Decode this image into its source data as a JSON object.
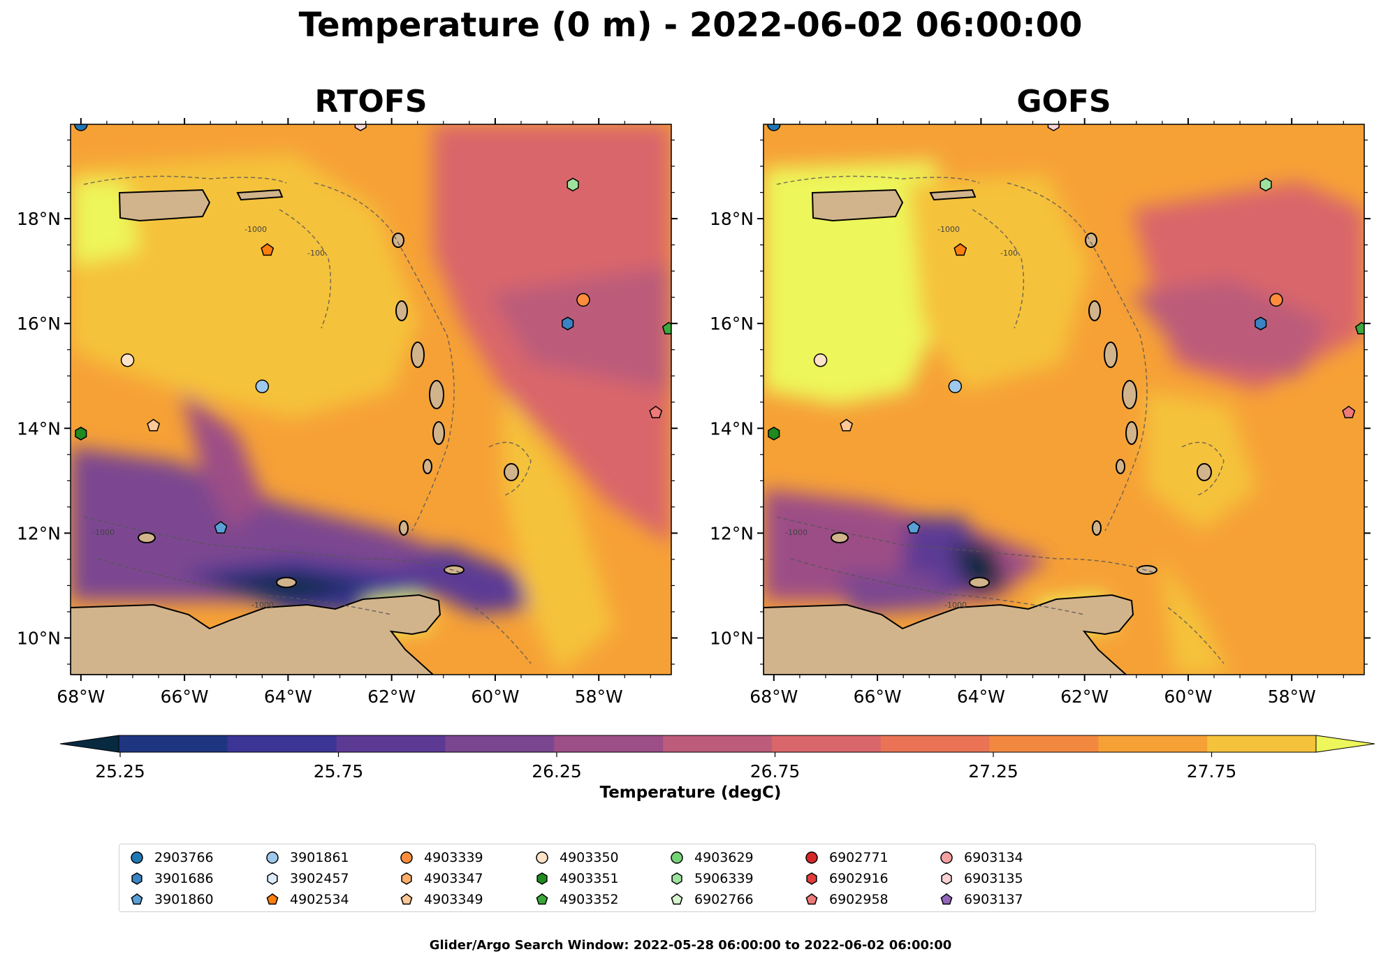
{
  "main_title": "Temperature (0 m) - 2022-06-02 06:00:00",
  "panels": [
    {
      "title": "RTOFS"
    },
    {
      "title": "GOFS"
    }
  ],
  "map": {
    "lon_range": [
      -68.2,
      -56.6
    ],
    "lat_range": [
      9.3,
      19.8
    ],
    "lon_ticks": [
      "68°W",
      "66°W",
      "64°W",
      "62°W",
      "60°W",
      "58°W"
    ],
    "lon_tick_values": [
      -68,
      -66,
      -64,
      -62,
      -60,
      -58
    ],
    "lat_ticks": [
      "10°N",
      "12°N",
      "14°N",
      "16°N",
      "18°N"
    ],
    "lat_tick_values": [
      10,
      12,
      14,
      16,
      18
    ],
    "land_color": "#d2b48c",
    "bathymetry_contours": [
      "-1000",
      "-100"
    ]
  },
  "colorbar": {
    "label": "Temperature (degC)",
    "ticks": [
      "25.25",
      "25.75",
      "26.25",
      "26.75",
      "27.25",
      "27.75"
    ],
    "tick_values": [
      25.25,
      25.75,
      26.25,
      26.75,
      27.25,
      27.75
    ],
    "range": [
      25.25,
      28.0
    ],
    "extend": "both",
    "colors": [
      "#072a41",
      "#1e3680",
      "#3b3596",
      "#5c3a94",
      "#7b4690",
      "#9c4e86",
      "#bc5b7a",
      "#d9666a",
      "#ea7356",
      "#f2883f",
      "#f6a136",
      "#f5c23b",
      "#edf65a"
    ]
  },
  "legend": {
    "items": [
      {
        "label": "2903766",
        "marker": "circle",
        "color": "#1f77b4"
      },
      {
        "label": "3901686",
        "marker": "hexagon",
        "color": "#3a83c4"
      },
      {
        "label": "3901860",
        "marker": "pentagon",
        "color": "#5aa0d8"
      },
      {
        "label": "3901861",
        "marker": "circle",
        "color": "#9ec9ec"
      },
      {
        "label": "3902457",
        "marker": "hexagon",
        "color": "#dcecfa"
      },
      {
        "label": "4902534",
        "marker": "pentagon",
        "color": "#ff7f0e"
      },
      {
        "label": "4903339",
        "marker": "circle",
        "color": "#fd8d3c"
      },
      {
        "label": "4903347",
        "marker": "hexagon",
        "color": "#fdae6b"
      },
      {
        "label": "4903349",
        "marker": "pentagon",
        "color": "#fdc896"
      },
      {
        "label": "4903350",
        "marker": "circle",
        "color": "#fde3c8"
      },
      {
        "label": "4903351",
        "marker": "hexagon",
        "color": "#1f8a1f"
      },
      {
        "label": "4903352",
        "marker": "pentagon",
        "color": "#3aa83a"
      },
      {
        "label": "4903629",
        "marker": "circle",
        "color": "#76d276"
      },
      {
        "label": "5906339",
        "marker": "hexagon",
        "color": "#9de29d"
      },
      {
        "label": "6902766",
        "marker": "pentagon",
        "color": "#d6f5d0"
      },
      {
        "label": "6902771",
        "marker": "circle",
        "color": "#d62728"
      },
      {
        "label": "6902916",
        "marker": "hexagon",
        "color": "#e23d3d"
      },
      {
        "label": "6902958",
        "marker": "pentagon",
        "color": "#ef7a7a"
      },
      {
        "label": "6903134",
        "marker": "circle",
        "color": "#f4a0a0"
      },
      {
        "label": "6903135",
        "marker": "hexagon",
        "color": "#fbd3d3"
      },
      {
        "label": "6903137",
        "marker": "pentagon",
        "color": "#9467bd"
      }
    ]
  },
  "markers": [
    {
      "id": "2903766",
      "lon": -68.0,
      "lat": 19.8
    },
    {
      "id": "6903135",
      "lon": -62.6,
      "lat": 19.8
    },
    {
      "id": "5906339",
      "lon": -58.5,
      "lat": 18.65
    },
    {
      "id": "4902534",
      "lon": -64.4,
      "lat": 17.4
    },
    {
      "id": "4903339",
      "lon": -58.3,
      "lat": 16.45
    },
    {
      "id": "3901686",
      "lon": -58.6,
      "lat": 16.0
    },
    {
      "id": "4903352",
      "lon": -56.65,
      "lat": 15.9
    },
    {
      "id": "4903350",
      "lon": -67.1,
      "lat": 15.3
    },
    {
      "id": "3901861",
      "lon": -64.5,
      "lat": 14.8
    },
    {
      "id": "6902958",
      "lon": -56.9,
      "lat": 14.3
    },
    {
      "id": "4903349",
      "lon": -66.6,
      "lat": 14.05
    },
    {
      "id": "4903351",
      "lon": -68.0,
      "lat": 13.9
    },
    {
      "id": "3901860",
      "lon": -65.3,
      "lat": 12.1
    }
  ],
  "footer": "Glider/Argo Search Window: 2022-05-28 06:00:00 to 2022-06-02 06:00:00"
}
